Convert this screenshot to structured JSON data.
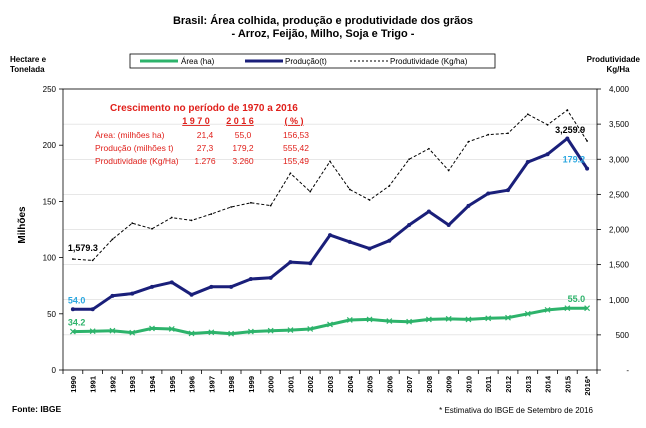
{
  "chart_data": {
    "type": "line",
    "title": "Brasil: Área colhida, produção e produtividade dos grãos",
    "subtitle": "- Arroz, Feijão, Milho, Soja e Trigo -",
    "left_axis_header": [
      "Hectare e",
      "Tonelada"
    ],
    "right_axis_header": [
      "Produtividade",
      "Kg/Ha"
    ],
    "ylabel": "Milhões",
    "ylim": [
      0,
      250
    ],
    "y_ticks": [
      "0",
      "50",
      "100",
      "150",
      "200",
      "250"
    ],
    "y2lim": [
      0,
      4000
    ],
    "y2_ticks": [
      "-",
      "500",
      "1,000",
      "1,500",
      "2,000",
      "2,500",
      "3,000",
      "3,500",
      "4,000"
    ],
    "categories": [
      "1990",
      "1991",
      "1992",
      "1993",
      "1994",
      "1995",
      "1996",
      "1997",
      "1998",
      "1999",
      "2000",
      "2001",
      "2002",
      "2003",
      "2004",
      "2005",
      "2006",
      "2007",
      "2008",
      "2009",
      "2010",
      "2011",
      "2012",
      "2013",
      "2014",
      "2015",
      "2016*"
    ],
    "series": [
      {
        "name": "Área (ha)",
        "axis": "left",
        "color": "#2db36b",
        "values": [
          34.2,
          34.5,
          35.0,
          33.2,
          37.0,
          36.5,
          32.5,
          33.5,
          32.3,
          34.2,
          35.0,
          35.5,
          36.5,
          40.5,
          44.5,
          45.0,
          43.5,
          43.0,
          45.0,
          45.5,
          45.0,
          46.0,
          46.5,
          50.0,
          53.5,
          55.0,
          55.0
        ]
      },
      {
        "name": "Produção(t)",
        "axis": "left",
        "color": "#1a1f7a",
        "values": [
          54.0,
          54.0,
          66.0,
          68.0,
          74.0,
          78.0,
          67.0,
          74.0,
          74.0,
          81.0,
          82.0,
          96.0,
          95.0,
          120.0,
          114.0,
          108.0,
          115.0,
          129.0,
          141.0,
          129.0,
          146.0,
          157.0,
          160.0,
          185.0,
          192.0,
          206.0,
          179.2
        ]
      },
      {
        "name": "Produtividade (Kg/ha)",
        "axis": "right",
        "color": "#000000",
        "values": [
          1579.3,
          1560,
          1860,
          2090,
          2010,
          2170,
          2130,
          2220,
          2320,
          2380,
          2340,
          2800,
          2540,
          2970,
          2570,
          2420,
          2620,
          3000,
          3150,
          2840,
          3250,
          3350,
          3370,
          3640,
          3490,
          3700,
          3259.9
        ]
      }
    ],
    "point_labels": [
      {
        "series": 0,
        "index": 0,
        "text": "34.2",
        "color": "#2db36b"
      },
      {
        "series": 0,
        "index": 26,
        "text": "55.0",
        "color": "#2db36b"
      },
      {
        "series": 1,
        "index": 0,
        "text": "54.0",
        "color": "#2ba7e0"
      },
      {
        "series": 1,
        "index": 26,
        "text": "179.2",
        "color": "#2ba7e0"
      },
      {
        "series": 2,
        "index": 0,
        "text": "1,579.3",
        "color": "#000000"
      },
      {
        "series": 2,
        "index": 26,
        "text": "3,259.9",
        "color": "#000000"
      }
    ],
    "grid": true,
    "legend": "top",
    "growth_box": {
      "title": "Crescimento no período de 1970 a 2016",
      "columns": [
        "1 9 7 0",
        "2 0 1 6",
        "( % )"
      ],
      "rows": [
        {
          "label": "Área: (milhões ha)",
          "v1970": "21,4",
          "v2016": "55,0",
          "pct": "156,53"
        },
        {
          "label": "Produção (milhões t)",
          "v1970": "27,3",
          "v2016": "179,2",
          "pct": "555,42"
        },
        {
          "label": "Produtividade (Kg/Ha)",
          "v1970": "1.276",
          "v2016": "3.260",
          "pct": "155,49"
        }
      ],
      "color": "#e0201b"
    },
    "source": "Fonte: IBGE",
    "footnote": "* Estimativa do IBGE de Setembro de 2016"
  }
}
